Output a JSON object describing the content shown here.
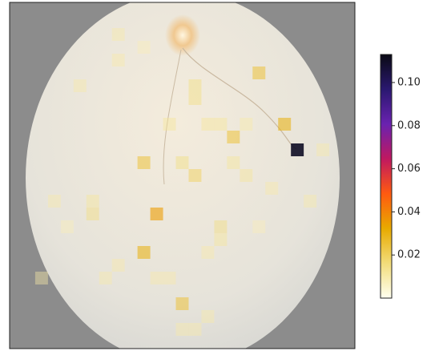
{
  "chart_data": {
    "type": "heatmap",
    "x": [
      22,
      21,
      19,
      17,
      10,
      11,
      10,
      13,
      14,
      13,
      8,
      8,
      5,
      14,
      14,
      12,
      15,
      16,
      18,
      17,
      18,
      6,
      3,
      6,
      16,
      16,
      15,
      8,
      11,
      12,
      7,
      15,
      13,
      14,
      2,
      24,
      20,
      23,
      4,
      19,
      10
    ],
    "y": [
      11,
      9,
      5,
      10,
      12,
      16,
      19,
      23,
      13,
      12,
      2,
      4,
      6,
      6,
      7,
      9,
      9,
      9,
      9,
      12,
      13,
      15,
      15,
      16,
      17,
      18,
      19,
      20,
      21,
      21,
      21,
      24,
      25,
      25,
      21,
      11,
      14,
      15,
      17,
      17,
      3
    ],
    "values": [
      0.11,
      0.03,
      0.025,
      0.025,
      0.025,
      0.035,
      0.03,
      0.025,
      0.02,
      0.015,
      0.01,
      0.01,
      0.01,
      0.015,
      0.015,
      0.012,
      0.012,
      0.012,
      0.01,
      0.012,
      0.012,
      0.012,
      0.01,
      0.015,
      0.015,
      0.012,
      0.01,
      0.01,
      0.01,
      0.01,
      0.01,
      0.01,
      0.01,
      0.01,
      0.01,
      0.01,
      0.01,
      0.01,
      0.008,
      0.008,
      0.008
    ],
    "xlim": [
      0,
      27
    ],
    "ylim": [
      27,
      0
    ],
    "clim": [
      0,
      0.113
    ],
    "cticks": [
      0.02,
      0.04,
      0.06,
      0.08,
      {
        "value": 0.1,
        "label": "0.10"
      }
    ],
    "colormap": [
      "#fffff0",
      "#f2dc7a",
      "#e8aa00",
      "#ff5a10",
      "#c01860",
      "#6a22b0",
      "#2a1870",
      "#0a0a14"
    ]
  }
}
